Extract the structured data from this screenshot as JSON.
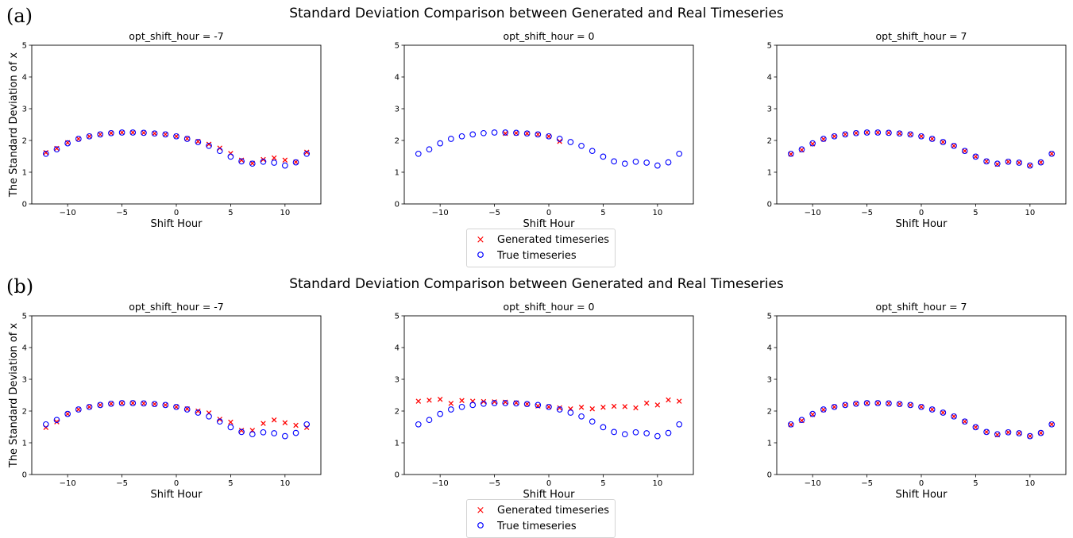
{
  "figure": {
    "panels": [
      {
        "letter": "(a)",
        "title": "Standard Deviation Comparison between Generated and Real Timeseries",
        "legend": [
          {
            "label": "Generated timeseries",
            "marker": "x",
            "color": "#ff0000"
          },
          {
            "label": "True timeseries",
            "marker": "o",
            "color": "#0000ff"
          }
        ]
      },
      {
        "letter": "(b)",
        "title": "Standard Deviation Comparison between Generated and Real Timeseries",
        "legend": [
          {
            "label": "Generated timeseries",
            "marker": "x",
            "color": "#ff0000"
          },
          {
            "label": "True timeseries",
            "marker": "o",
            "color": "#0000ff"
          }
        ]
      }
    ]
  },
  "chart_data": [
    {
      "type": "scatter",
      "panel": "(a)",
      "title": "opt_shift_hour = -7",
      "xlabel": "Shift Hour",
      "ylabel": "The Standard Deviation of x",
      "xlim": [
        -13.3,
        13.3
      ],
      "ylim": [
        0,
        5
      ],
      "xticks": [
        -10,
        -5,
        0,
        5,
        10
      ],
      "xtick_labels": [
        "−10",
        "−5",
        "0",
        "5",
        "10"
      ],
      "yticks": [
        0,
        1,
        2,
        3,
        4,
        5
      ],
      "ytick_labels": [
        "0",
        "1",
        "2",
        "3",
        "4",
        "5"
      ],
      "x": [
        -12,
        -11,
        -10,
        -9,
        -8,
        -7,
        -6,
        -5,
        -4,
        -3,
        -2,
        -1,
        0,
        1,
        2,
        3,
        4,
        5,
        6,
        7,
        8,
        9,
        10,
        11,
        12
      ],
      "series": [
        {
          "name": "Generated timeseries",
          "marker": "x",
          "color": "#ff0000",
          "values": [
            1.62,
            1.75,
            1.93,
            2.05,
            2.13,
            2.19,
            2.23,
            2.25,
            2.25,
            2.24,
            2.22,
            2.19,
            2.13,
            2.06,
            1.97,
            1.88,
            1.76,
            1.59,
            1.38,
            1.28,
            1.4,
            1.45,
            1.38,
            1.32,
            1.63
          ]
        },
        {
          "name": "True timeseries",
          "marker": "o",
          "color": "#0000ff",
          "values": [
            1.58,
            1.72,
            1.91,
            2.05,
            2.13,
            2.19,
            2.23,
            2.25,
            2.25,
            2.24,
            2.22,
            2.19,
            2.13,
            2.05,
            1.95,
            1.83,
            1.67,
            1.49,
            1.34,
            1.27,
            1.33,
            1.3,
            1.21,
            1.31,
            1.58
          ]
        }
      ]
    },
    {
      "type": "scatter",
      "panel": "(a)",
      "title": "opt_shift_hour = 0",
      "xlabel": "Shift Hour",
      "ylabel": "",
      "xlim": [
        -13.3,
        13.3
      ],
      "ylim": [
        0,
        5
      ],
      "xticks": [
        -10,
        -5,
        0,
        5,
        10
      ],
      "xtick_labels": [
        "−10",
        "−5",
        "0",
        "5",
        "10"
      ],
      "yticks": [
        0,
        1,
        2,
        3,
        4,
        5
      ],
      "ytick_labels": [
        "0",
        "1",
        "2",
        "3",
        "4",
        "5"
      ],
      "series": [
        {
          "name": "Generated timeseries",
          "marker": "x",
          "color": "#ff0000",
          "x": [
            -4,
            -3,
            -2,
            -1,
            0,
            1
          ],
          "values": [
            2.22,
            2.23,
            2.22,
            2.19,
            2.13,
            1.97
          ]
        },
        {
          "name": "True timeseries",
          "marker": "o",
          "color": "#0000ff",
          "x": [
            -12,
            -11,
            -10,
            -9,
            -8,
            -7,
            -6,
            -5,
            -4,
            -3,
            -2,
            -1,
            0,
            1,
            2,
            3,
            4,
            5,
            6,
            7,
            8,
            9,
            10,
            11,
            12
          ],
          "values": [
            1.58,
            1.72,
            1.91,
            2.05,
            2.13,
            2.19,
            2.23,
            2.25,
            2.25,
            2.24,
            2.22,
            2.19,
            2.13,
            2.05,
            1.95,
            1.83,
            1.67,
            1.49,
            1.34,
            1.27,
            1.33,
            1.3,
            1.21,
            1.31,
            1.58
          ]
        }
      ]
    },
    {
      "type": "scatter",
      "panel": "(a)",
      "title": "opt_shift_hour = 7",
      "xlabel": "Shift Hour",
      "ylabel": "",
      "xlim": [
        -13.3,
        13.3
      ],
      "ylim": [
        0,
        5
      ],
      "xticks": [
        -10,
        -5,
        0,
        5,
        10
      ],
      "xtick_labels": [
        "−10",
        "−5",
        "0",
        "5",
        "10"
      ],
      "yticks": [
        0,
        1,
        2,
        3,
        4,
        5
      ],
      "ytick_labels": [
        "0",
        "1",
        "2",
        "3",
        "4",
        "5"
      ],
      "x": [
        -12,
        -11,
        -10,
        -9,
        -8,
        -7,
        -6,
        -5,
        -4,
        -3,
        -2,
        -1,
        0,
        1,
        2,
        3,
        4,
        5,
        6,
        7,
        8,
        9,
        10,
        11,
        12
      ],
      "series": [
        {
          "name": "Generated timeseries",
          "marker": "x",
          "color": "#ff0000",
          "values": [
            1.57,
            1.7,
            1.89,
            2.04,
            2.13,
            2.19,
            2.23,
            2.25,
            2.25,
            2.24,
            2.22,
            2.19,
            2.13,
            2.05,
            1.95,
            1.83,
            1.67,
            1.49,
            1.34,
            1.25,
            1.33,
            1.3,
            1.21,
            1.31,
            1.58
          ]
        },
        {
          "name": "True timeseries",
          "marker": "o",
          "color": "#0000ff",
          "values": [
            1.58,
            1.72,
            1.91,
            2.05,
            2.13,
            2.19,
            2.23,
            2.25,
            2.25,
            2.24,
            2.22,
            2.19,
            2.13,
            2.05,
            1.95,
            1.83,
            1.67,
            1.49,
            1.34,
            1.27,
            1.33,
            1.3,
            1.21,
            1.31,
            1.58
          ]
        }
      ]
    },
    {
      "type": "scatter",
      "panel": "(b)",
      "title": "opt_shift_hour = -7",
      "xlabel": "Shift Hour",
      "ylabel": "The Standard Deviation of x",
      "xlim": [
        -13.3,
        13.3
      ],
      "ylim": [
        0,
        5
      ],
      "xticks": [
        -10,
        -5,
        0,
        5,
        10
      ],
      "xtick_labels": [
        "−10",
        "−5",
        "0",
        "5",
        "10"
      ],
      "yticks": [
        0,
        1,
        2,
        3,
        4,
        5
      ],
      "ytick_labels": [
        "0",
        "1",
        "2",
        "3",
        "4",
        "5"
      ],
      "x": [
        -12,
        -11,
        -10,
        -9,
        -8,
        -7,
        -6,
        -5,
        -4,
        -3,
        -2,
        -1,
        0,
        1,
        2,
        3,
        4,
        5,
        6,
        7,
        8,
        9,
        10,
        11,
        12
      ],
      "series": [
        {
          "name": "Generated timeseries",
          "marker": "x",
          "color": "#ff0000",
          "values": [
            1.48,
            1.66,
            1.91,
            2.05,
            2.13,
            2.19,
            2.23,
            2.25,
            2.25,
            2.24,
            2.22,
            2.19,
            2.13,
            2.07,
            2.0,
            1.94,
            1.74,
            1.65,
            1.39,
            1.39,
            1.61,
            1.72,
            1.63,
            1.55,
            1.48
          ]
        },
        {
          "name": "True timeseries",
          "marker": "o",
          "color": "#0000ff",
          "values": [
            1.58,
            1.72,
            1.91,
            2.05,
            2.13,
            2.19,
            2.23,
            2.25,
            2.25,
            2.24,
            2.22,
            2.19,
            2.13,
            2.05,
            1.95,
            1.83,
            1.67,
            1.49,
            1.34,
            1.27,
            1.33,
            1.3,
            1.21,
            1.31,
            1.58
          ]
        }
      ]
    },
    {
      "type": "scatter",
      "panel": "(b)",
      "title": "opt_shift_hour = 0",
      "xlabel": "Shift Hour",
      "ylabel": "",
      "xlim": [
        -13.3,
        13.3
      ],
      "ylim": [
        0,
        5
      ],
      "xticks": [
        -10,
        -5,
        0,
        5,
        10
      ],
      "xtick_labels": [
        "−10",
        "−5",
        "0",
        "5",
        "10"
      ],
      "yticks": [
        0,
        1,
        2,
        3,
        4,
        5
      ],
      "ytick_labels": [
        "0",
        "1",
        "2",
        "3",
        "4",
        "5"
      ],
      "x": [
        -12,
        -11,
        -10,
        -9,
        -8,
        -7,
        -6,
        -5,
        -4,
        -3,
        -2,
        -1,
        0,
        1,
        2,
        3,
        4,
        5,
        6,
        7,
        8,
        9,
        10,
        11,
        12
      ],
      "series": [
        {
          "name": "Generated timeseries",
          "marker": "x",
          "color": "#ff0000",
          "values": [
            2.31,
            2.34,
            2.37,
            2.24,
            2.33,
            2.31,
            2.3,
            2.29,
            2.28,
            2.26,
            2.22,
            2.16,
            2.13,
            2.1,
            2.07,
            2.12,
            2.07,
            2.12,
            2.15,
            2.14,
            2.1,
            2.25,
            2.19,
            2.35,
            2.31
          ]
        },
        {
          "name": "True timeseries",
          "marker": "o",
          "color": "#0000ff",
          "values": [
            1.58,
            1.72,
            1.91,
            2.05,
            2.13,
            2.19,
            2.23,
            2.25,
            2.25,
            2.24,
            2.22,
            2.19,
            2.13,
            2.05,
            1.95,
            1.83,
            1.67,
            1.49,
            1.34,
            1.27,
            1.33,
            1.3,
            1.21,
            1.31,
            1.58
          ]
        }
      ]
    },
    {
      "type": "scatter",
      "panel": "(b)",
      "title": "opt_shift_hour = 7",
      "xlabel": "Shift Hour",
      "ylabel": "",
      "xlim": [
        -13.3,
        13.3
      ],
      "ylim": [
        0,
        5
      ],
      "xticks": [
        -10,
        -5,
        0,
        5,
        10
      ],
      "xtick_labels": [
        "−10",
        "−5",
        "0",
        "5",
        "10"
      ],
      "yticks": [
        0,
        1,
        2,
        3,
        4,
        5
      ],
      "ytick_labels": [
        "0",
        "1",
        "2",
        "3",
        "4",
        "5"
      ],
      "x": [
        -12,
        -11,
        -10,
        -9,
        -8,
        -7,
        -6,
        -5,
        -4,
        -3,
        -2,
        -1,
        0,
        1,
        2,
        3,
        4,
        5,
        6,
        7,
        8,
        9,
        10,
        11,
        12
      ],
      "series": [
        {
          "name": "Generated timeseries",
          "marker": "x",
          "color": "#ff0000",
          "values": [
            1.57,
            1.7,
            1.89,
            2.04,
            2.13,
            2.19,
            2.23,
            2.25,
            2.25,
            2.24,
            2.22,
            2.19,
            2.13,
            2.05,
            1.95,
            1.83,
            1.67,
            1.49,
            1.34,
            1.25,
            1.33,
            1.3,
            1.21,
            1.31,
            1.58
          ]
        },
        {
          "name": "True timeseries",
          "marker": "o",
          "color": "#0000ff",
          "values": [
            1.58,
            1.72,
            1.91,
            2.05,
            2.13,
            2.19,
            2.23,
            2.25,
            2.25,
            2.24,
            2.22,
            2.19,
            2.13,
            2.05,
            1.95,
            1.83,
            1.67,
            1.49,
            1.34,
            1.27,
            1.33,
            1.3,
            1.21,
            1.31,
            1.58
          ]
        }
      ]
    }
  ]
}
